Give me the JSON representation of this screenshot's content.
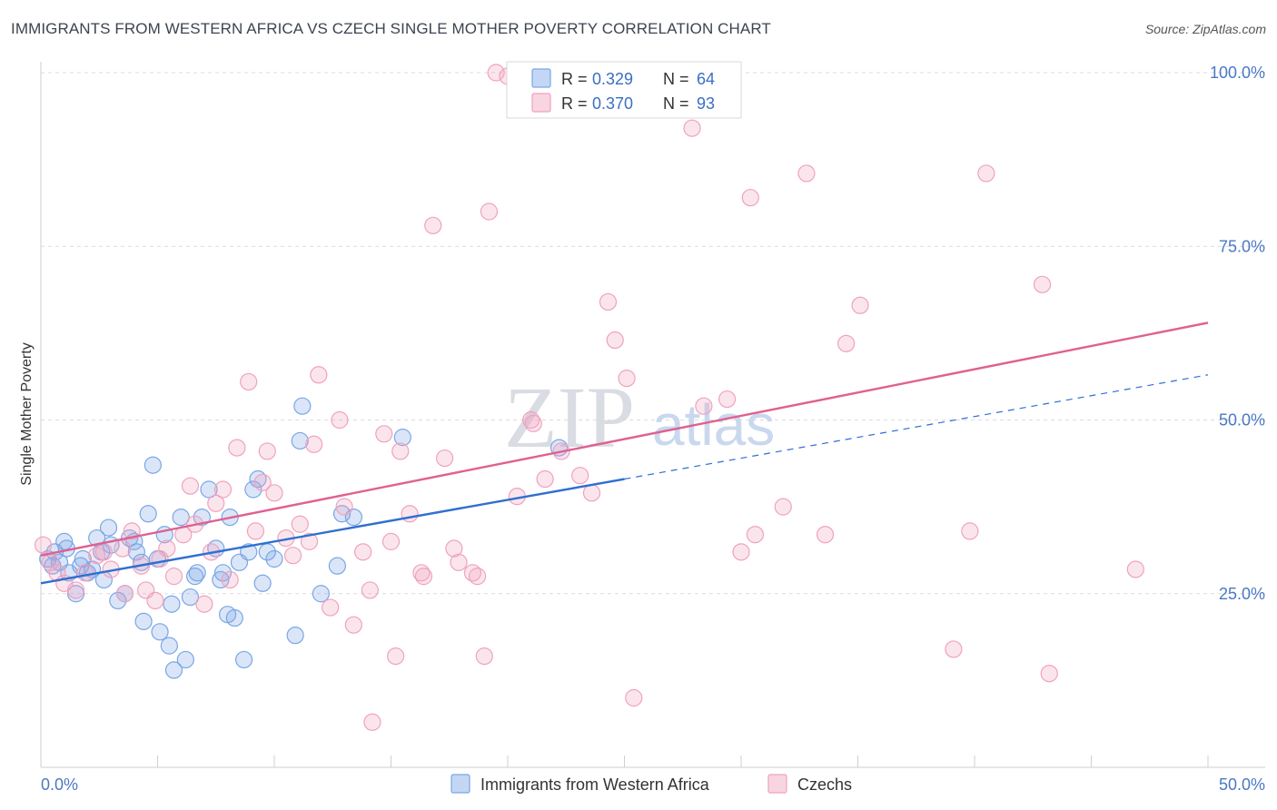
{
  "header": {
    "title": "IMMIGRANTS FROM WESTERN AFRICA VS CZECH SINGLE MOTHER POVERTY CORRELATION CHART",
    "source": "Source: ZipAtlas.com"
  },
  "watermark": {
    "zip": "ZIP",
    "atlas": "atlas"
  },
  "legend_top": [
    {
      "r_label": "R = ",
      "r_value": "0.329",
      "n_label": "N = ",
      "n_value": "64",
      "color": "#7aa6e6"
    },
    {
      "r_label": "R = ",
      "r_value": "0.370",
      "n_label": "N = ",
      "n_value": "93",
      "color": "#f0a2bd"
    }
  ],
  "legend_bottom": [
    {
      "label": "Immigrants from Western Africa",
      "color": "#7aa6e6"
    },
    {
      "label": "Czechs",
      "color": "#f0a2bd"
    }
  ],
  "chart_data": {
    "type": "scatter",
    "title": "IMMIGRANTS FROM WESTERN AFRICA VS CZECH SINGLE MOTHER POVERTY CORRELATION CHART",
    "xlabel": "",
    "ylabel": "Single Mother Poverty",
    "xlim": [
      0,
      50
    ],
    "ylim": [
      0,
      100
    ],
    "x_tick_labels": [
      "0.0%",
      "50.0%"
    ],
    "y_ticks": [
      25,
      50,
      75,
      100
    ],
    "y_tick_labels": [
      "25.0%",
      "50.0%",
      "75.0%",
      "100.0%"
    ],
    "grid": true,
    "legend_position": "top-center",
    "series": [
      {
        "name": "Immigrants from Western Africa",
        "color": "#7aa6e6",
        "line_color": "#2f6fd0",
        "trend": {
          "x": [
            0,
            25
          ],
          "y": [
            26.5,
            41.5
          ],
          "dashed_extension": {
            "x": [
              25,
              50
            ],
            "y": [
              41.5,
              56.5
            ]
          }
        },
        "points": [
          [
            0.3,
            30
          ],
          [
            0.5,
            29
          ],
          [
            0.6,
            31
          ],
          [
            0.8,
            29.5
          ],
          [
            1.0,
            32.5
          ],
          [
            1.1,
            31.5
          ],
          [
            1.2,
            28
          ],
          [
            1.5,
            25
          ],
          [
            1.7,
            29
          ],
          [
            1.8,
            30
          ],
          [
            2.0,
            28
          ],
          [
            2.2,
            28.5
          ],
          [
            2.4,
            33
          ],
          [
            2.7,
            27
          ],
          [
            2.6,
            31
          ],
          [
            2.9,
            34.5
          ],
          [
            3.0,
            32
          ],
          [
            3.3,
            24
          ],
          [
            3.6,
            25
          ],
          [
            3.8,
            33
          ],
          [
            4.0,
            32.5
          ],
          [
            4.1,
            31
          ],
          [
            4.3,
            29.5
          ],
          [
            4.4,
            21
          ],
          [
            4.6,
            36.5
          ],
          [
            4.8,
            43.5
          ],
          [
            5.0,
            30
          ],
          [
            5.1,
            19.5
          ],
          [
            5.3,
            33.5
          ],
          [
            5.5,
            17.5
          ],
          [
            5.6,
            23.5
          ],
          [
            5.7,
            14
          ],
          [
            6.0,
            36
          ],
          [
            6.2,
            15.5
          ],
          [
            6.4,
            24.5
          ],
          [
            6.6,
            27.5
          ],
          [
            6.7,
            28
          ],
          [
            6.9,
            36
          ],
          [
            7.2,
            40
          ],
          [
            7.5,
            31.5
          ],
          [
            7.7,
            27
          ],
          [
            7.8,
            28
          ],
          [
            8.0,
            22
          ],
          [
            8.1,
            36
          ],
          [
            8.3,
            21.5
          ],
          [
            8.5,
            29.5
          ],
          [
            8.7,
            15.5
          ],
          [
            8.9,
            31
          ],
          [
            9.1,
            40
          ],
          [
            9.3,
            41.5
          ],
          [
            9.5,
            26.5
          ],
          [
            9.7,
            31
          ],
          [
            10.0,
            30
          ],
          [
            10.9,
            19
          ],
          [
            11.1,
            47
          ],
          [
            11.2,
            52
          ],
          [
            12.0,
            25
          ],
          [
            12.7,
            29
          ],
          [
            12.9,
            36.5
          ],
          [
            13.4,
            36
          ],
          [
            15.5,
            47.5
          ],
          [
            22.2,
            46
          ]
        ]
      },
      {
        "name": "Czechs",
        "color": "#f0a2bd",
        "line_color": "#e0608f",
        "trend": {
          "x": [
            0,
            50
          ],
          "y": [
            30.5,
            64
          ]
        },
        "points": [
          [
            0.1,
            32
          ],
          [
            0.4,
            29.5
          ],
          [
            0.7,
            28
          ],
          [
            1.0,
            26.5
          ],
          [
            1.5,
            25.5
          ],
          [
            1.9,
            28
          ],
          [
            2.4,
            30.5
          ],
          [
            2.7,
            31
          ],
          [
            3.0,
            28.5
          ],
          [
            3.5,
            31.5
          ],
          [
            3.6,
            25
          ],
          [
            3.9,
            34
          ],
          [
            4.3,
            29
          ],
          [
            4.5,
            25.5
          ],
          [
            4.9,
            24
          ],
          [
            5.1,
            30
          ],
          [
            5.4,
            31.5
          ],
          [
            5.7,
            27.5
          ],
          [
            6.1,
            33.5
          ],
          [
            6.4,
            40.5
          ],
          [
            6.6,
            35
          ],
          [
            7.0,
            23.5
          ],
          [
            7.3,
            31
          ],
          [
            7.5,
            38
          ],
          [
            7.8,
            40
          ],
          [
            8.1,
            27
          ],
          [
            8.4,
            46
          ],
          [
            8.9,
            55.5
          ],
          [
            9.2,
            34
          ],
          [
            9.5,
            41
          ],
          [
            9.7,
            45.5
          ],
          [
            10.0,
            39.5
          ],
          [
            10.5,
            33
          ],
          [
            10.8,
            30.5
          ],
          [
            11.1,
            35
          ],
          [
            11.5,
            32.5
          ],
          [
            11.7,
            46.5
          ],
          [
            11.9,
            56.5
          ],
          [
            12.4,
            23
          ],
          [
            12.8,
            50
          ],
          [
            13.0,
            37.5
          ],
          [
            13.4,
            20.5
          ],
          [
            13.8,
            31
          ],
          [
            14.1,
            25.5
          ],
          [
            14.2,
            6.5
          ],
          [
            14.7,
            48
          ],
          [
            15.0,
            32.5
          ],
          [
            15.2,
            16
          ],
          [
            15.4,
            45.5
          ],
          [
            15.8,
            36.5
          ],
          [
            16.3,
            28
          ],
          [
            16.4,
            27.5
          ],
          [
            16.8,
            78
          ],
          [
            17.3,
            44.5
          ],
          [
            17.7,
            31.5
          ],
          [
            17.9,
            29.5
          ],
          [
            18.5,
            28
          ],
          [
            18.7,
            27.5
          ],
          [
            19.0,
            16
          ],
          [
            19.2,
            80
          ],
          [
            19.5,
            100
          ],
          [
            20.0,
            99.5
          ],
          [
            20.4,
            39
          ],
          [
            21.0,
            50
          ],
          [
            21.1,
            49.5
          ],
          [
            21.6,
            41.5
          ],
          [
            22.3,
            45.5
          ],
          [
            23.1,
            42
          ],
          [
            23.6,
            39.5
          ],
          [
            24.3,
            67
          ],
          [
            24.6,
            61.5
          ],
          [
            25.1,
            56
          ],
          [
            25.4,
            10
          ],
          [
            27.9,
            92
          ],
          [
            28.4,
            52
          ],
          [
            29.4,
            53
          ],
          [
            30.0,
            31
          ],
          [
            30.4,
            82
          ],
          [
            30.6,
            33.5
          ],
          [
            31.8,
            37.5
          ],
          [
            32.8,
            85.5
          ],
          [
            33.6,
            33.5
          ],
          [
            34.5,
            61
          ],
          [
            35.1,
            66.5
          ],
          [
            39.1,
            17
          ],
          [
            39.8,
            34
          ],
          [
            40.5,
            85.5
          ],
          [
            42.9,
            69.5
          ],
          [
            43.2,
            13.5
          ],
          [
            46.9,
            28.5
          ],
          [
            25.2,
            100
          ]
        ]
      }
    ]
  }
}
